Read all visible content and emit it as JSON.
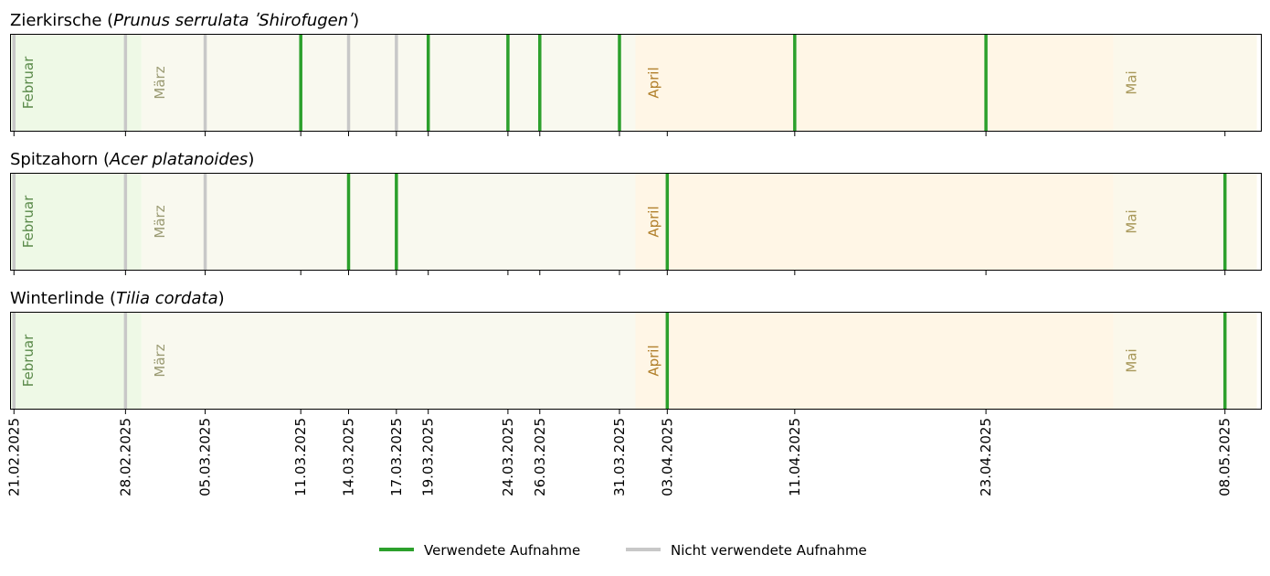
{
  "chart_data": {
    "type": "timeline",
    "dates": [
      "21.02.2025",
      "28.02.2025",
      "05.03.2025",
      "11.03.2025",
      "14.03.2025",
      "17.03.2025",
      "19.03.2025",
      "24.03.2025",
      "26.03.2025",
      "31.03.2025",
      "03.04.2025",
      "11.04.2025",
      "23.04.2025",
      "08.05.2025"
    ],
    "months": [
      {
        "label": "Februar",
        "start": "2025-02-20",
        "end": "2025-03-01",
        "color": "#e8f7dd",
        "text_color": "#5a8a4a"
      },
      {
        "label": "März",
        "start": "2025-03-01",
        "end": "2025-04-01",
        "color": "#f7f7ea",
        "text_color": "#9a9a72"
      },
      {
        "label": "April",
        "start": "2025-04-01",
        "end": "2025-05-01",
        "color": "#fff3de",
        "text_color": "#b07f2a"
      },
      {
        "label": "Mai",
        "start": "2025-05-01",
        "end": "2025-05-10",
        "color": "#faf6e4",
        "text_color": "#a8985a"
      }
    ],
    "panels": [
      {
        "title_prefix": "Zierkirsche (",
        "title_species": "Prunus serrulata",
        "title_cultivar": " ʹShirofugenʹ",
        "title_suffix": ")",
        "used": [
          "11.03.2025",
          "19.03.2025",
          "24.03.2025",
          "26.03.2025",
          "31.03.2025",
          "11.04.2025",
          "23.04.2025"
        ],
        "unused": [
          "21.02.2025",
          "28.02.2025",
          "05.03.2025",
          "14.03.2025",
          "17.03.2025"
        ]
      },
      {
        "title_prefix": "Spitzahorn (",
        "title_species": "Acer platanoides",
        "title_cultivar": "",
        "title_suffix": ")",
        "used": [
          "14.03.2025",
          "17.03.2025",
          "03.04.2025",
          "08.05.2025"
        ],
        "unused": [
          "21.02.2025",
          "28.02.2025",
          "05.03.2025"
        ]
      },
      {
        "title_prefix": "Winterlinde (",
        "title_species": "Tilia cordata",
        "title_cultivar": "",
        "title_suffix": ")",
        "used": [
          "03.04.2025",
          "08.05.2025"
        ],
        "unused": [
          "21.02.2025",
          "28.02.2025"
        ]
      }
    ],
    "legend": [
      {
        "label": "Verwendete Aufnahme",
        "color": "#2ca02c"
      },
      {
        "label": "Nicht verwendete Aufnahme",
        "color": "#c8c8c8"
      }
    ],
    "legend_position": "bottom-center",
    "xlim": [
      "2025-02-20",
      "2025-05-10"
    ]
  }
}
